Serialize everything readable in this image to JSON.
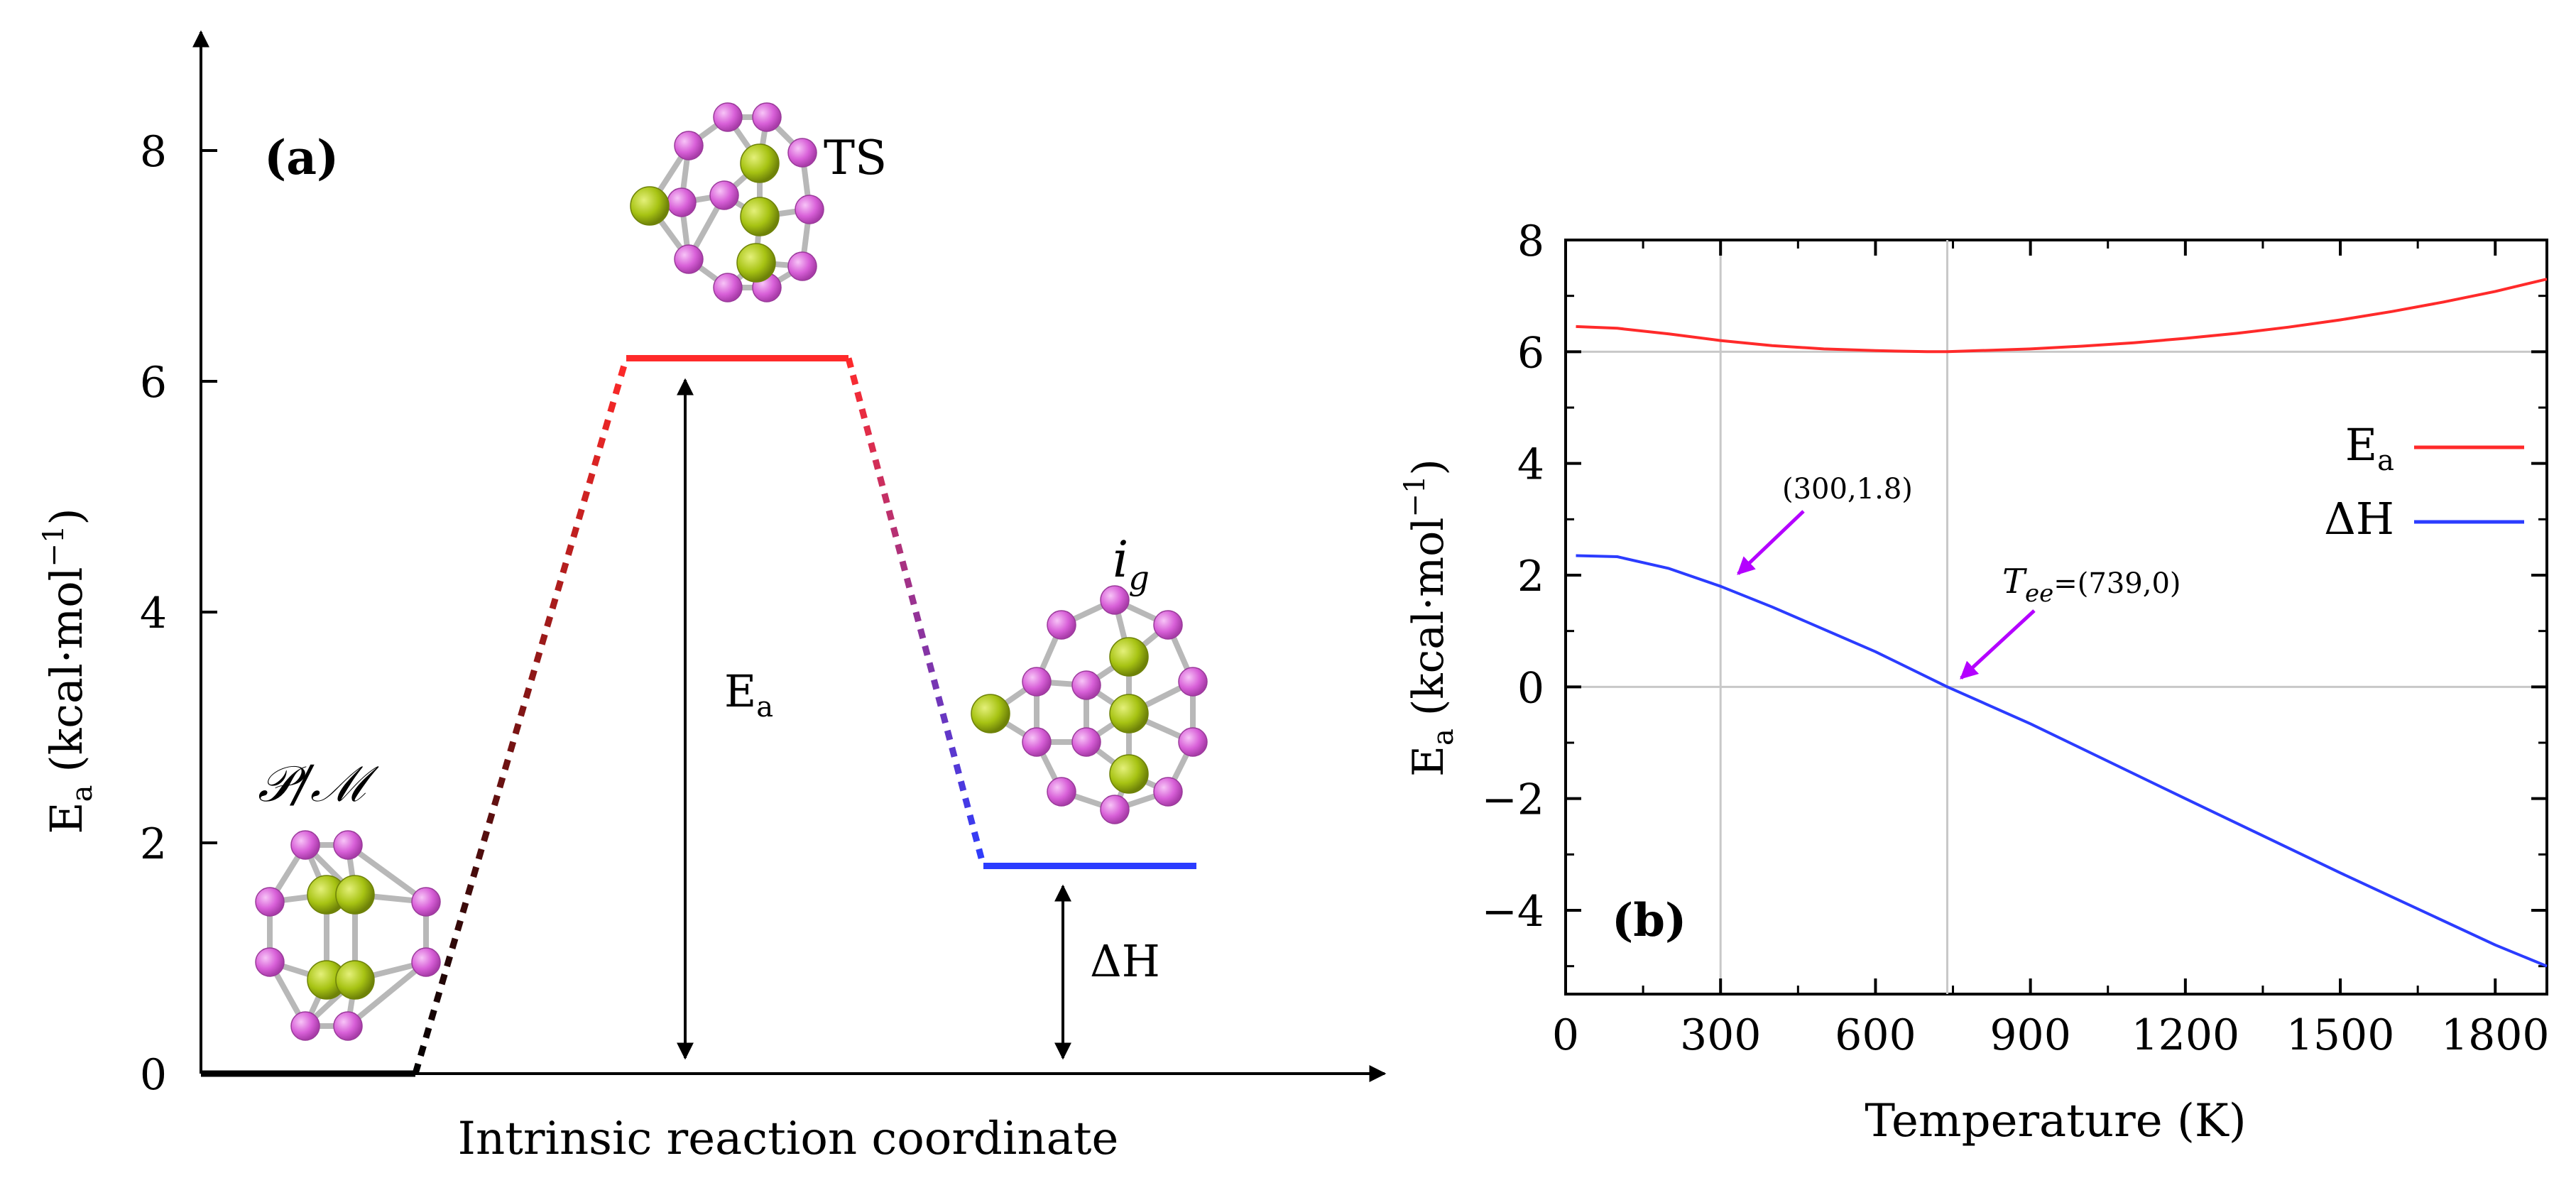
{
  "colors": {
    "red": "#ff2a2a",
    "blue": "#2b3cff",
    "dark": "#000000",
    "grid": "#c8c8c8",
    "arrow_magenta": "#b400ff",
    "atom_pink": "#d860d8",
    "atom_green": "#a7c313",
    "bond": "#b8b8b8"
  },
  "chart_data": [
    {
      "panel": "(a)",
      "type": "energy-profile",
      "xlabel": "Intrinsic reaction coordinate",
      "ylabel_main": "E",
      "ylabel_sub": "a",
      "ylabel_unit": "(kcal·mol",
      "ylabel_exp": "−1",
      "ylabel_close": ")",
      "ylim": [
        0,
        9
      ],
      "yticks": [
        0,
        2,
        4,
        6,
        8
      ],
      "ytick_labels": [
        "0",
        "2",
        "4",
        "6",
        "8"
      ],
      "states": [
        {
          "name": "reactant",
          "label": "𝒫/ℳ",
          "energy": 0.0,
          "color": "#000000"
        },
        {
          "name": "TS",
          "label": "TS",
          "energy": 6.2,
          "color": "#ff2a2a"
        },
        {
          "name": "product",
          "label_main": "i",
          "label_sub": "g",
          "energy": 1.8,
          "color": "#2b3cff"
        }
      ],
      "annotations": {
        "ea_main": "E",
        "ea_sub": "a",
        "dh": "ΔH"
      }
    },
    {
      "panel": "(b)",
      "type": "line",
      "xlabel": "Temperature (K)",
      "ylabel_main": "E",
      "ylabel_sub": "a",
      "ylabel_unit": "(kcal·mol",
      "ylabel_exp": "−1",
      "ylabel_close": ")",
      "xlim": [
        0,
        1900
      ],
      "ylim": [
        -5.5,
        8
      ],
      "xticks": [
        0,
        300,
        600,
        900,
        1200,
        1500,
        1800
      ],
      "xtick_labels": [
        "0",
        "300",
        "600",
        "900",
        "1200",
        "1500",
        "1800"
      ],
      "yticks": [
        -4,
        -2,
        0,
        2,
        4,
        6,
        8
      ],
      "ytick_labels": [
        "−4",
        "−2",
        "0",
        "2",
        "4",
        "6",
        "8"
      ],
      "gridlines": {
        "x": [
          300,
          739
        ],
        "y": [
          0,
          6
        ]
      },
      "series": [
        {
          "name": "Ea",
          "legend_main": "E",
          "legend_sub": "a",
          "color": "#ff2a2a",
          "x": [
            20,
            100,
            200,
            300,
            400,
            500,
            600,
            700,
            739,
            800,
            900,
            1000,
            1100,
            1200,
            1300,
            1400,
            1500,
            1600,
            1700,
            1800,
            1900
          ],
          "y": [
            6.45,
            6.42,
            6.32,
            6.2,
            6.11,
            6.05,
            6.02,
            6.0,
            6.0,
            6.02,
            6.05,
            6.1,
            6.16,
            6.24,
            6.33,
            6.44,
            6.57,
            6.72,
            6.89,
            7.08,
            7.3
          ]
        },
        {
          "name": "dH",
          "legend_main": "ΔH",
          "legend_sub": "",
          "color": "#2b3cff",
          "x": [
            20,
            100,
            200,
            300,
            400,
            500,
            600,
            739,
            900,
            1200,
            1500,
            1800,
            1900
          ],
          "y": [
            2.35,
            2.33,
            2.12,
            1.8,
            1.43,
            1.03,
            0.63,
            0.0,
            -0.66,
            -2.0,
            -3.33,
            -4.62,
            -5.0
          ]
        }
      ],
      "annotations": {
        "point1_label": "(300,1.8)",
        "point1": [
          300,
          1.8
        ],
        "tee_main": "T",
        "tee_sub": "ee",
        "tee_value": "=(739,0)",
        "point2": [
          739,
          0
        ]
      }
    }
  ]
}
